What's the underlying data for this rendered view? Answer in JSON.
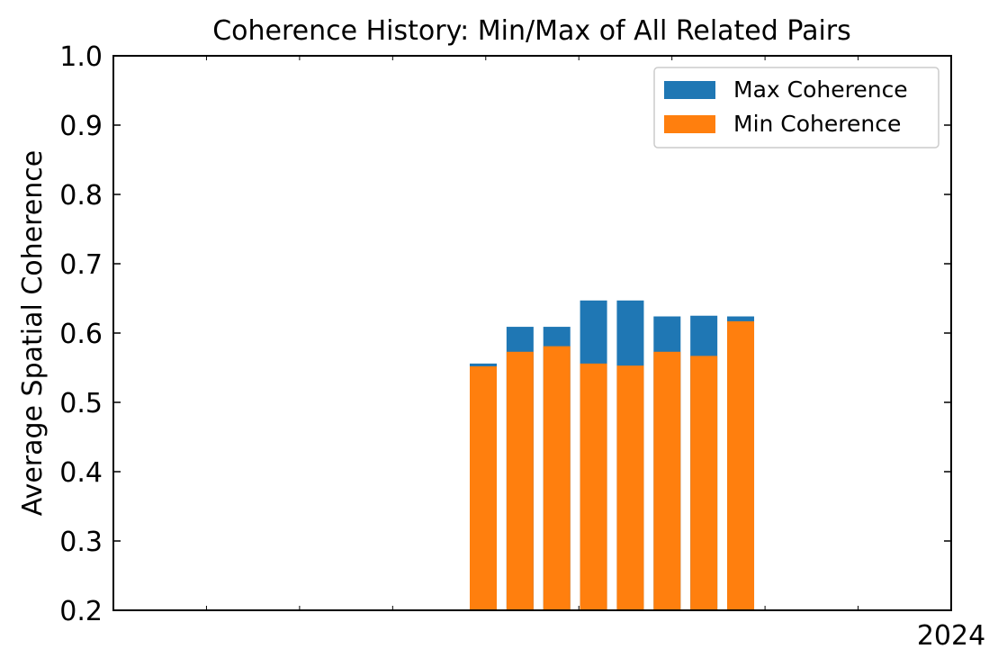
{
  "chart_data": {
    "type": "bar",
    "title": "Coherence History: Min/Max of All Related Pairs",
    "xlabel": "",
    "ylabel": "Average Spatial Coherence",
    "ylim": [
      0.2,
      1.0
    ],
    "y_ticks": [
      "0.2",
      "0.3",
      "0.4",
      "0.5",
      "0.6",
      "0.7",
      "0.8",
      "0.9",
      "1.0"
    ],
    "x_tick_labels": [
      "2024"
    ],
    "grid": false,
    "legend_position": "top-right",
    "colors": {
      "max": "#1f77b4",
      "min": "#ff7f0e"
    },
    "series": [
      {
        "name": "Max Coherence",
        "values": [
          0.556,
          0.609,
          0.609,
          0.647,
          0.647,
          0.624,
          0.625,
          0.624
        ]
      },
      {
        "name": "Min Coherence",
        "values": [
          0.552,
          0.573,
          0.581,
          0.556,
          0.553,
          0.573,
          0.567,
          0.617
        ]
      }
    ]
  }
}
